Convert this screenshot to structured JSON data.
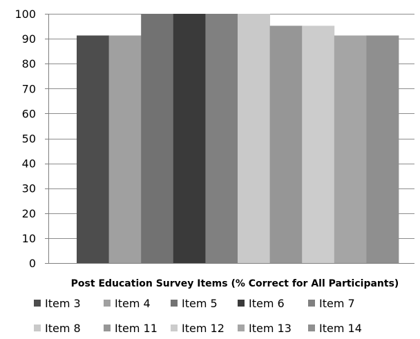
{
  "chart_data": {
    "type": "bar",
    "title": "",
    "xlabel": "Post Education Survey Items (% Correct for All Participants)",
    "ylabel": "",
    "ylim": [
      0,
      100
    ],
    "yticks": [
      0,
      10,
      20,
      30,
      40,
      50,
      60,
      70,
      80,
      90,
      100
    ],
    "grid": true,
    "legend_position": "bottom",
    "series": [
      {
        "name": "Item 3",
        "value": 91.3,
        "color": "#4d4d4d"
      },
      {
        "name": "Item 4",
        "value": 91.3,
        "color": "#a0a0a0"
      },
      {
        "name": "Item 5",
        "value": 100,
        "color": "#727272"
      },
      {
        "name": "Item 6",
        "value": 100,
        "color": "#3a3a3a"
      },
      {
        "name": "Item 7",
        "value": 100,
        "color": "#808080"
      },
      {
        "name": "Item 8",
        "value": 100,
        "color": "#c9c9c9"
      },
      {
        "name": "Item 11",
        "value": 95.2,
        "color": "#969696"
      },
      {
        "name": "Item 12",
        "value": 95.2,
        "color": "#cccccc"
      },
      {
        "name": "Item 13",
        "value": 91.3,
        "color": "#a5a5a5"
      },
      {
        "name": "Item 14",
        "value": 91.3,
        "color": "#8f8f8f"
      }
    ]
  }
}
